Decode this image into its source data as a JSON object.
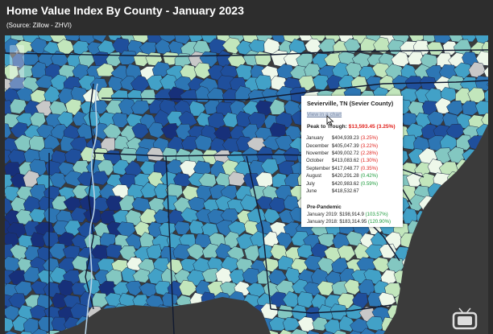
{
  "header": {
    "title": "Home Value Index By County - January 2023",
    "subtitle": "(Source: Zillow - ZHVI)"
  },
  "map": {
    "colors": {
      "darkest": "#17307a",
      "dark": "#1f4f9c",
      "mid_blue": "#2d76b4",
      "teal": "#42a1c7",
      "light_teal": "#83c7c1",
      "pale_green": "#c2e6bc",
      "palest": "#eef8ea",
      "no_data": "#c8c8c8",
      "ocean": "#3b3b3b",
      "border": "#1e2a44"
    }
  },
  "zoom": {
    "in_icon": "+",
    "out_icon": "−"
  },
  "popup": {
    "title": "Sevierville, TN (Sevier County)",
    "link": "View in a chart",
    "peak_label": "Peak to Trough:",
    "peak_value": "$13,593.45 (3.25%)",
    "rows": [
      {
        "month": "January",
        "value": "$404,939.23",
        "pct": "(3.25%)",
        "status": "red"
      },
      {
        "month": "December",
        "value": "$405,047.39",
        "pct": "(3.22%)",
        "status": "red"
      },
      {
        "month": "November",
        "value": "$409,002.72",
        "pct": "(2.28%)",
        "status": "red"
      },
      {
        "month": "October",
        "value": "$413,083.62",
        "pct": "(1.30%)",
        "status": "red"
      },
      {
        "month": "September",
        "value": "$417,048.77",
        "pct": "(0.35%)",
        "status": "red"
      },
      {
        "month": "August",
        "value": "$420,291.28",
        "pct": "(0.42%)",
        "status": "green"
      },
      {
        "month": "July",
        "value": "$420,983.62",
        "pct": "(0.59%)",
        "status": "green"
      },
      {
        "month": "June",
        "value": "$418,532.67",
        "pct": "",
        "status": "none"
      }
    ],
    "pre_title": "Pre-Pandemic",
    "pre_rows": [
      {
        "label": "January 2019:",
        "value": "$198,914.9",
        "pct": "(103.57%)"
      },
      {
        "label": "January 2018:",
        "value": "$183,314.95",
        "pct": "(120.90%)"
      }
    ]
  },
  "icons": {
    "cursor": "pointer-cursor-icon",
    "logo": "tv-logo-icon"
  }
}
